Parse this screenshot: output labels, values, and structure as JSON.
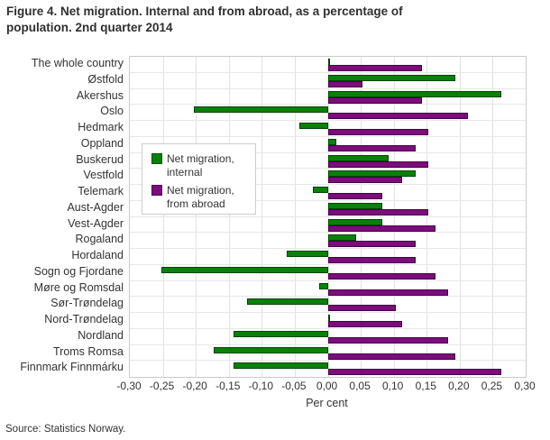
{
  "title": {
    "text": "Figure 4.  Net migration. Internal and from abroad, as a percentage of population. 2nd quarter 2014",
    "lines": [
      "Figure 4.  Net migration. Internal and from abroad, as a percentage of",
      "population. 2nd quarter 2014"
    ]
  },
  "source": "Source: Statistics Norway.",
  "chart_data": {
    "type": "bar",
    "orientation": "horizontal",
    "title": "Net migration. Internal and from abroad, as a percentage of population. 2nd quarter 2014",
    "xlabel": "Per cent",
    "ylabel": "",
    "xlim": [
      -0.3,
      0.3
    ],
    "grid": true,
    "legend_position": "upper-left-inside",
    "x_tick_labels": [
      "-0,30",
      "-0,25",
      "-0,20",
      "-0,15",
      "-0,10",
      "-0,05",
      "0,00",
      "0,05",
      "0,10",
      "0,15",
      "0,20",
      "0,25",
      "0,30"
    ],
    "x_tick_values": [
      -0.3,
      -0.25,
      -0.2,
      -0.15,
      -0.1,
      -0.05,
      0.0,
      0.05,
      0.1,
      0.15,
      0.2,
      0.25,
      0.3
    ],
    "categories": [
      "The whole country",
      "Østfold",
      "Akershus",
      "Oslo",
      "Hedmark",
      "Oppland",
      "Buskerud",
      "Vestfold",
      "Telemark",
      "Aust-Agder",
      "Vest-Agder",
      "Rogaland",
      "Hordaland",
      "Sogn og Fjordane",
      "Møre og Romsdal",
      "Sør-Trøndelag",
      "Nord-Trøndelag",
      "Nordland",
      "Troms Romsa",
      "Finnmark Finnmárku"
    ],
    "series": [
      {
        "name": "Net migration, internal",
        "color": "#098109",
        "values": [
          0.0,
          0.19,
          0.26,
          -0.2,
          -0.04,
          0.01,
          0.09,
          0.13,
          -0.02,
          0.08,
          0.08,
          0.04,
          -0.06,
          -0.25,
          -0.01,
          -0.12,
          0.0,
          -0.14,
          -0.17,
          -0.14
        ]
      },
      {
        "name": "Net migration, from abroad",
        "color": "#7d0c7d",
        "values": [
          0.14,
          0.05,
          0.14,
          0.21,
          0.15,
          0.13,
          0.15,
          0.11,
          0.08,
          0.15,
          0.16,
          0.13,
          0.13,
          0.16,
          0.18,
          0.1,
          0.11,
          0.18,
          0.19,
          0.26
        ]
      }
    ]
  }
}
